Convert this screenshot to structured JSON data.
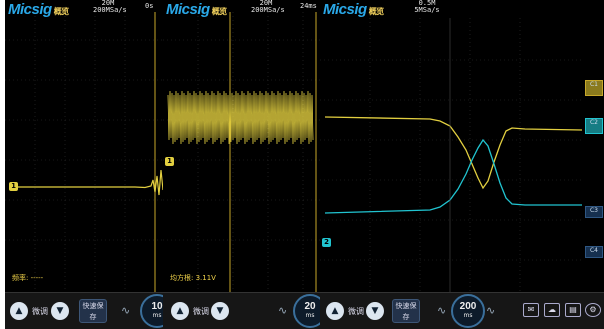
{
  "brand": "Micsig",
  "brand_sub": "概览",
  "panels": [
    {
      "header_line1": "20M",
      "header_line2": "200MSa/s",
      "header_right": "0s",
      "meas_label": "频率: -----",
      "toolbar_left": "微调",
      "quick_save": "快速保存",
      "dial_value": "10",
      "dial_unit": "ms"
    },
    {
      "header_line1": "20M",
      "header_line2": "200MSa/s",
      "header_right": "24ms",
      "meas_label": "均方根: 3.11V",
      "toolbar_left": "微调",
      "dial_value": "20",
      "dial_unit": "ms"
    },
    {
      "header_line1": "0.5M",
      "header_line2": "5MSa/s",
      "dial_value": "200",
      "dial_unit": "ms",
      "quick_save": "快速保存",
      "toolbar_left": "微调"
    }
  ],
  "channel_markers": [
    "1",
    "1",
    "2"
  ],
  "side_buttons": [
    "C1",
    "C2",
    "C3",
    "C4"
  ],
  "icons": [
    "waveform-icon",
    "cloud-icon",
    "file-icon",
    "settings-icon"
  ],
  "colors": {
    "ch1": "#e2cf40",
    "ch2": "#21c4d0",
    "accent": "#2aa8e8",
    "grid": "#3a3a3a"
  }
}
